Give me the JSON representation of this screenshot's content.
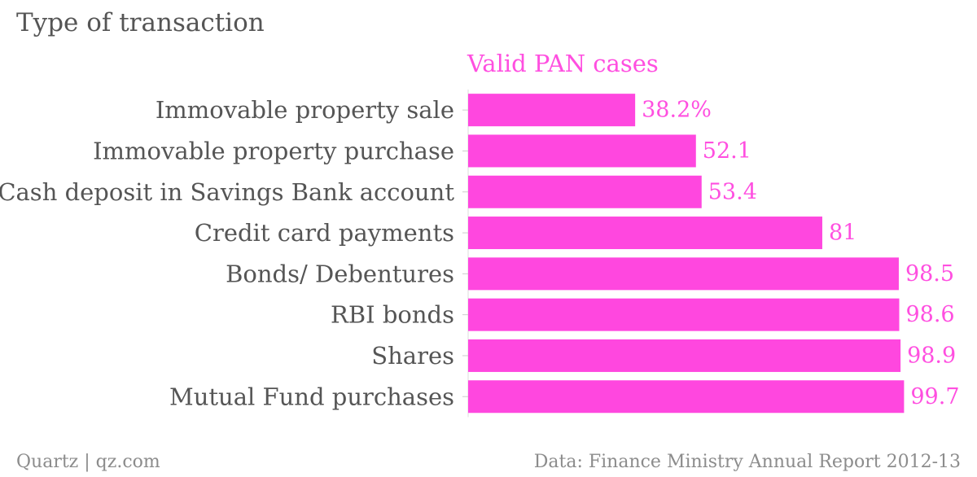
{
  "header": {
    "title": "Type of transaction"
  },
  "footer": {
    "left": "Quartz | qz.com",
    "right": "Data: Finance Ministry Annual Report 2012-13"
  },
  "colors": {
    "bar": "#ff47df",
    "label": "#ff4fe0",
    "category_text": "#555555",
    "footer_text": "#8c8c8c"
  },
  "chart_data": {
    "type": "bar",
    "orientation": "horizontal",
    "title": "Type of transaction",
    "categories": [
      "Immovable property sale",
      "Immovable property purchase",
      "Cash deposit in Savings Bank account",
      "Credit card payments",
      "Bonds/ Debentures",
      "RBI bonds",
      "Shares",
      "Mutual Fund purchases"
    ],
    "series": [
      {
        "name": "Valid PAN cases",
        "values": [
          38.2,
          52.1,
          53.4,
          81,
          98.5,
          98.6,
          98.9,
          99.7
        ]
      }
    ],
    "value_labels": [
      "38.2%",
      "52.1",
      "53.4",
      "81",
      "98.5",
      "98.6",
      "98.9",
      "99.7"
    ],
    "xlim": [
      0,
      100
    ],
    "grid": false,
    "legend": "none"
  }
}
